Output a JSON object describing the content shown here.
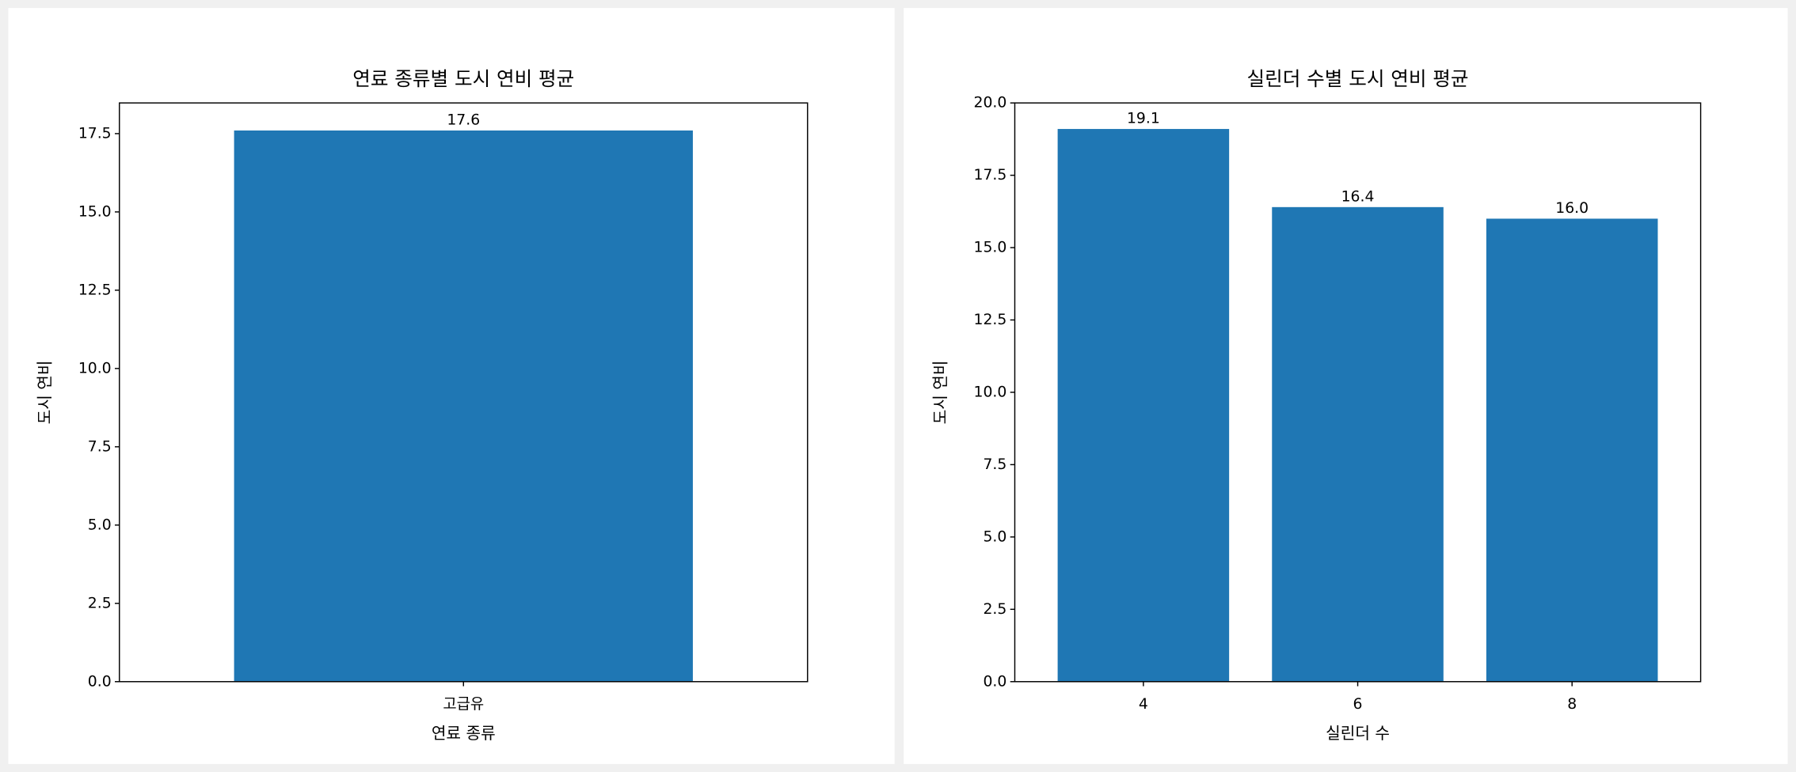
{
  "chart_data": [
    {
      "type": "bar",
      "title": "연료 종류별 도시 연비 평균",
      "x_label": "연료 종류",
      "y_label": "도시 연비",
      "categories": [
        "고급유"
      ],
      "values": [
        17.6
      ],
      "color": "#1f77b4",
      "ylim": [
        0,
        18.48
      ],
      "yticks": [
        {
          "value": 0,
          "label": "0.0"
        },
        {
          "value": 2.5,
          "label": "2.5"
        },
        {
          "value": 5,
          "label": "5.0"
        },
        {
          "value": 7.5,
          "label": "7.5"
        },
        {
          "value": 10,
          "label": "10.0"
        },
        {
          "value": 12.5,
          "label": "12.5"
        },
        {
          "value": 15,
          "label": "15.0"
        },
        {
          "value": 17.5,
          "label": "17.5"
        }
      ]
    },
    {
      "type": "bar",
      "title": "실린더 수별 도시 연비 평균",
      "x_label": "실린더 수",
      "y_label": "도시 연비",
      "categories": [
        "4",
        "6",
        "8"
      ],
      "values": [
        19.1,
        16.4,
        16
      ],
      "value_labels": [
        "19.1",
        "16.4",
        "16.0"
      ],
      "color": "#1f77b4",
      "ylim": [
        0,
        20
      ],
      "yticks": [
        {
          "value": 0,
          "label": "0.0"
        },
        {
          "value": 2.5,
          "label": "2.5"
        },
        {
          "value": 5,
          "label": "5.0"
        },
        {
          "value": 7.5,
          "label": "7.5"
        },
        {
          "value": 10,
          "label": "10.0"
        },
        {
          "value": 12.5,
          "label": "12.5"
        },
        {
          "value": 15,
          "label": "15.0"
        },
        {
          "value": 17.5,
          "label": "17.5"
        },
        {
          "value": 20,
          "label": "20.0"
        }
      ]
    }
  ]
}
